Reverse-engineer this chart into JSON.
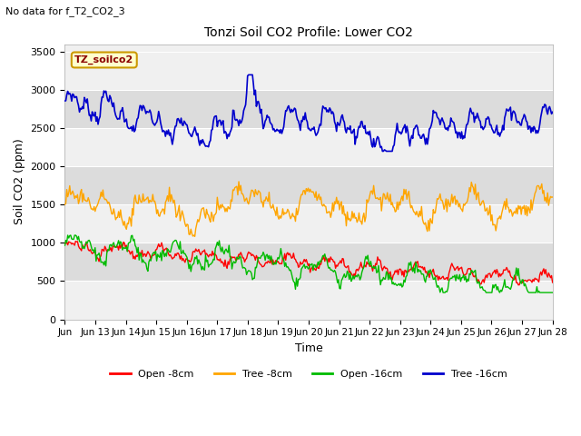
{
  "title": "Tonzi Soil CO2 Profile: Lower CO2",
  "subtitle": "No data for f_T2_CO2_3",
  "xlabel": "Time",
  "ylabel": "Soil CO2 (ppm)",
  "ylim": [
    0,
    3600
  ],
  "yticks": [
    0,
    500,
    1000,
    1500,
    2000,
    2500,
    3000,
    3500
  ],
  "xtick_labels": [
    "Jun",
    "Jun 13",
    "Jun 14",
    "Jun 15",
    "Jun 16",
    "Jun 17",
    "Jun 18",
    "Jun 19",
    "Jun 20",
    "Jun 21",
    "Jun 22",
    "Jun 23",
    "Jun 24",
    "Jun 25",
    "Jun 26",
    "Jun 27",
    "Jun 28"
  ],
  "legend_label": "TZ_soilco2",
  "legend_entries": [
    "Open -8cm",
    "Tree -8cm",
    "Open -16cm",
    "Tree -16cm"
  ],
  "legend_colors": [
    "#ff0000",
    "#ffa500",
    "#00bb00",
    "#0000cc"
  ],
  "bg_color": "#ffffff",
  "plot_bg_color": "#f0f0f0",
  "band_color": "#dcdcdc",
  "colors": {
    "open8": "#ff0000",
    "tree8": "#ffa500",
    "open16": "#00bb00",
    "tree16": "#0000cc"
  }
}
